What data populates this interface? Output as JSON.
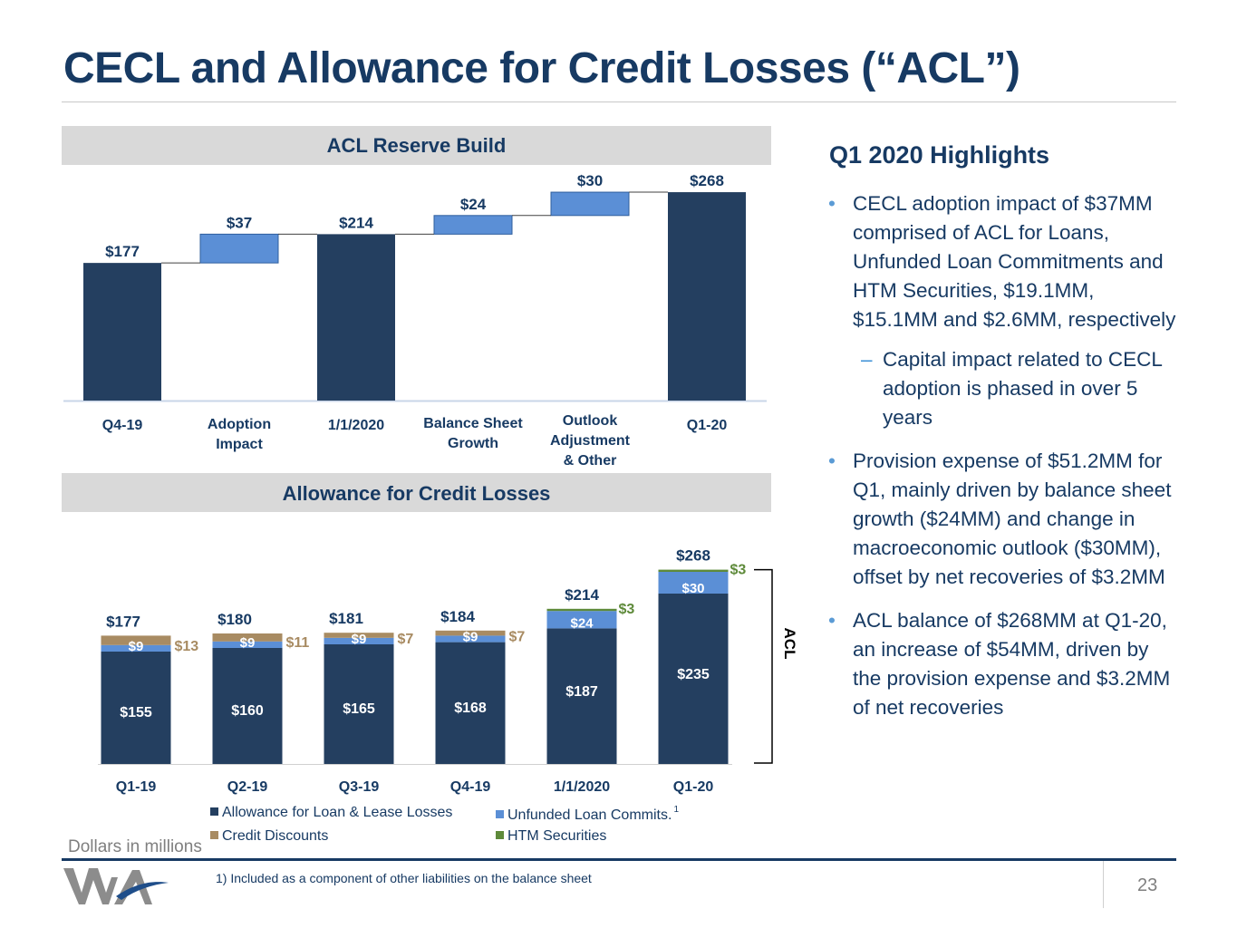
{
  "page": {
    "title": "CECL and Allowance for Credit Losses (“ACL”)",
    "dollars_note": "Dollars in millions",
    "footnote": "1) Included as a component of other liabilities on the balance sheet",
    "page_number": "23"
  },
  "highlights": {
    "title": "Q1 2020 Highlights",
    "bullet_1": "CECL adoption impact of $37MM comprised of ACL for Loans, Unfunded Loan Commitments and HTM Securities, $19.1MM, $15.1MM and $2.6MM, respectively",
    "bullet_1_sub": "Capital impact related to CECL adoption is phased in over 5 years",
    "bullet_2": "Provision expense of $51.2MM for Q1, mainly driven by balance sheet growth ($24MM) and change in macroeconomic outlook ($30MM), offset by net recoveries of $3.2MM",
    "bullet_3": "ACL balance of $268MM at Q1-20, an increase of $54MM, driven by the provision expense and $3.2MM of net recoveries"
  },
  "colors": {
    "navy": "#243f60",
    "blue": "#5b8fd6",
    "tan": "#a88b62",
    "green": "#5e8a3a",
    "title": "#173a63"
  },
  "chart_data": [
    {
      "type": "waterfall",
      "title": "ACL Reserve Build",
      "categories": [
        "Q4-19",
        "Adoption Impact",
        "1/1/2020",
        "Balance Sheet Growth",
        "Outlook Adjustment & Other",
        "Q1-20"
      ],
      "steps": [
        {
          "label": "$177",
          "kind": "total",
          "value": 177
        },
        {
          "label": "$37",
          "kind": "increase",
          "value": 37
        },
        {
          "label": "$214",
          "kind": "total",
          "value": 214
        },
        {
          "label": "$24",
          "kind": "increase",
          "value": 24
        },
        {
          "label": "$30",
          "kind": "increase",
          "value": 30
        },
        {
          "label": "$268",
          "kind": "total",
          "value": 268
        }
      ],
      "ylim": [
        0,
        300
      ]
    },
    {
      "type": "stacked_bar",
      "title": "Allowance for Credit Losses",
      "categories": [
        "Q1-19",
        "Q2-19",
        "Q3-19",
        "Q4-19",
        "1/1/2020",
        "Q1-20"
      ],
      "totals": [
        177,
        180,
        181,
        184,
        214,
        268
      ],
      "total_labels": [
        "$177",
        "$180",
        "$181",
        "$184",
        "$214",
        "$268"
      ],
      "series": [
        {
          "name": "Allowance for Loan & Lease Losses",
          "values": [
            155,
            160,
            165,
            168,
            187,
            235
          ],
          "labels": [
            "$155",
            "$160",
            "$165",
            "$168",
            "$187",
            "$235"
          ]
        },
        {
          "name": "Unfunded Loan Commits.",
          "values": [
            9,
            9,
            9,
            9,
            24,
            30
          ],
          "labels": [
            "$9",
            "$9",
            "$9",
            "$9",
            "$24",
            "$30"
          ]
        },
        {
          "name": "Credit Discounts",
          "values": [
            13,
            11,
            7,
            7,
            0,
            0
          ],
          "labels": [
            "$13",
            "$11",
            "$7",
            "$7",
            "",
            ""
          ]
        },
        {
          "name": "HTM Securities",
          "values": [
            0,
            0,
            0,
            0,
            3,
            3
          ],
          "labels": [
            "",
            "",
            "",
            "",
            "$3",
            "$3"
          ]
        }
      ],
      "legend_footnote_marker": "1",
      "bracket_label": "ACL",
      "ylim": [
        0,
        300
      ]
    }
  ]
}
